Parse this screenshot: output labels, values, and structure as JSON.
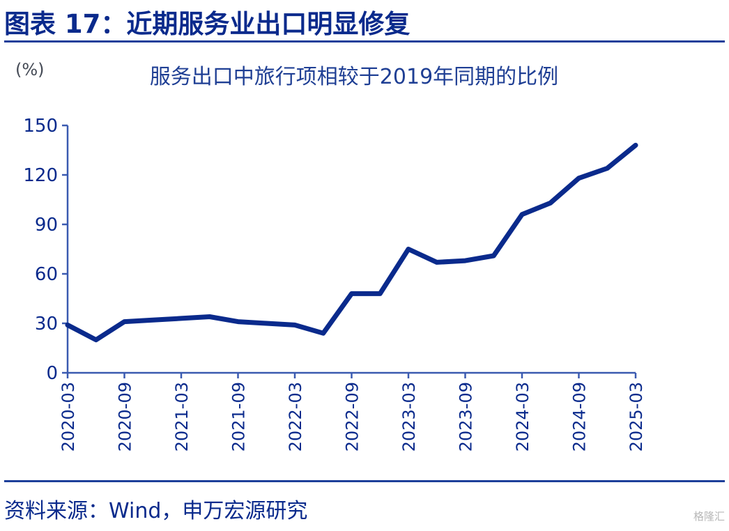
{
  "figure_title": "图表 17：近期服务业出口明显修复",
  "source": "资料来源：Wind，申万宏源研究",
  "watermark": "格隆汇",
  "chart_data": {
    "type": "line",
    "title": "服务出口中旅行项相较于2019年同期的比例",
    "ylabel": "(%)",
    "xlabel": "",
    "ylim": [
      0,
      150
    ],
    "yticks": [
      0,
      30,
      60,
      90,
      120,
      150
    ],
    "x_labels": [
      "2020-03",
      "2020-09",
      "2021-03",
      "2021-09",
      "2022-03",
      "2022-09",
      "2023-03",
      "2023-09",
      "2024-03",
      "2024-09",
      "2025-03"
    ],
    "x": [
      "2020-03",
      "2020-06",
      "2020-09",
      "2020-12",
      "2021-03",
      "2021-06",
      "2021-09",
      "2021-12",
      "2022-03",
      "2022-06",
      "2022-09",
      "2022-12",
      "2023-03",
      "2023-06",
      "2023-09",
      "2023-12",
      "2024-03",
      "2024-06",
      "2024-09",
      "2024-12",
      "2025-03"
    ],
    "values": [
      29,
      20,
      31,
      32,
      33,
      34,
      31,
      30,
      29,
      24,
      48,
      48,
      75,
      67,
      68,
      71,
      96,
      103,
      118,
      124,
      138
    ],
    "grid": false,
    "legend": "none",
    "color": "#0a2a8c"
  }
}
